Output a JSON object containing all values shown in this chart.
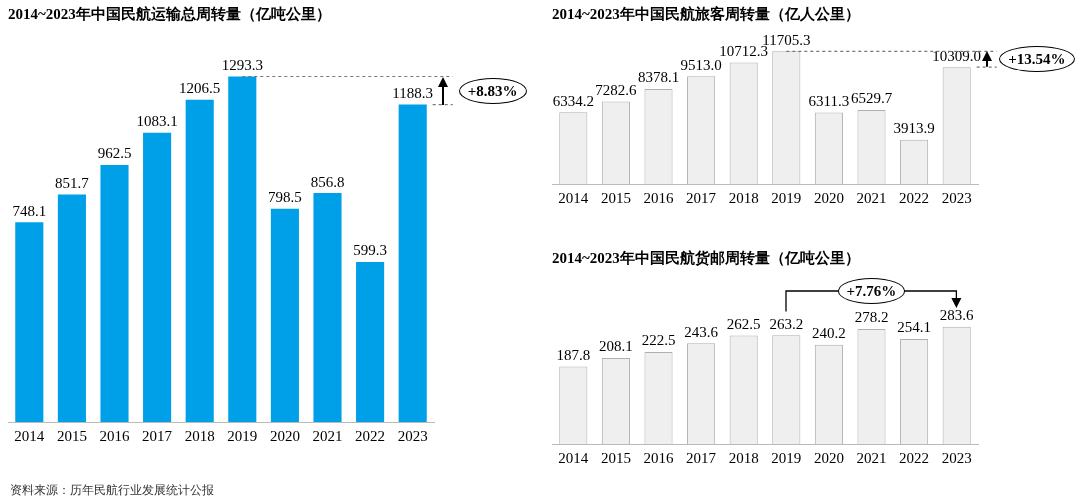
{
  "chart_data": [
    {
      "type": "bar",
      "title": "2014~2023年中国民航运输总周转量（亿吨公里）",
      "categories": [
        "2014",
        "2015",
        "2016",
        "2017",
        "2018",
        "2019",
        "2020",
        "2021",
        "2022",
        "2023"
      ],
      "values": [
        748.1,
        851.7,
        962.5,
        1083.1,
        1206.5,
        1293.3,
        798.5,
        856.8,
        599.3,
        1188.3
      ],
      "color": "#00a0e9",
      "value_labels": [
        "748.1",
        "851.7",
        "962.5",
        "1083.1",
        "1206.5",
        "1293.3",
        "798.5",
        "856.8",
        "599.3",
        "1188.3"
      ],
      "annotations": [
        "+8.83%",
        "资料来源：历年民航行业发展统计公报"
      ],
      "legend": false,
      "grid": false
    },
    {
      "type": "bar",
      "title": "2014~2023年中国民航旅客周转量（亿人公里）",
      "categories": [
        "2014",
        "2015",
        "2016",
        "2017",
        "2018",
        "2019",
        "2020",
        "2021",
        "2022",
        "2023"
      ],
      "values": [
        6334.2,
        7282.6,
        8378.1,
        9513.0,
        10712.3,
        11705.3,
        6311.3,
        6529.7,
        3913.9,
        10309.0
      ],
      "color": "#efefef",
      "value_labels": [
        "6334.2",
        "7282.6",
        "8378.1",
        "9513.0",
        "10712.3",
        "11705.3",
        "6311.3",
        "6529.7",
        "3913.9",
        "10309.0"
      ],
      "annotations": [
        "+13.54%"
      ],
      "legend": false,
      "grid": false
    },
    {
      "type": "bar",
      "title": "2014~2023年中国民航货邮周转量（亿吨公里）",
      "categories": [
        "2014",
        "2015",
        "2016",
        "2017",
        "2018",
        "2019",
        "2020",
        "2021",
        "2022",
        "2023"
      ],
      "values": [
        187.8,
        208.1,
        222.5,
        243.6,
        262.5,
        263.2,
        240.2,
        278.2,
        254.1,
        283.6
      ],
      "color": "#efefef",
      "value_labels": [
        "187.8",
        "208.1",
        "222.5",
        "243.6",
        "262.5",
        "263.2",
        "240.2",
        "278.2",
        "254.1",
        "283.6"
      ],
      "annotations": [
        "+7.76%"
      ],
      "legend": false,
      "grid": false
    }
  ]
}
